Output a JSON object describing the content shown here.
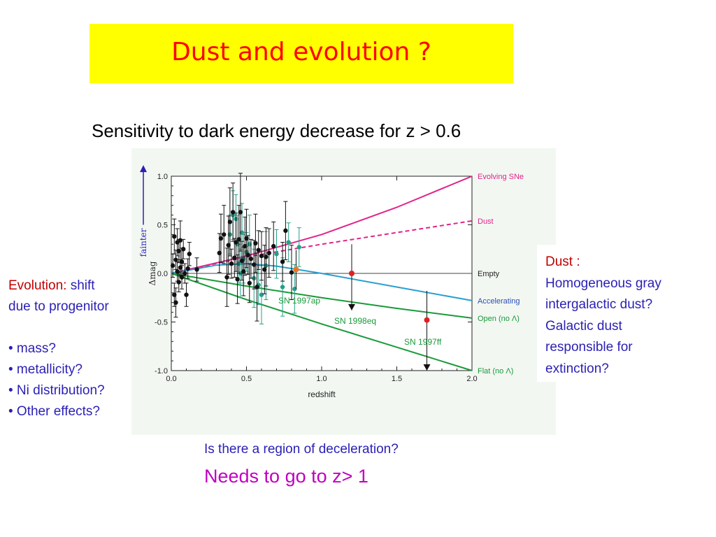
{
  "slide": {
    "title": "Dust and evolution ?",
    "subtitle": "Sensitivity to dark energy decrease for z > 0.6",
    "left_notes": {
      "heading_red": "Evolution:",
      "heading_rest": " shift",
      "line2": "due to progenitor",
      "bullets": [
        "• mass?",
        "• metallicity?",
        "• Ni distribution?",
        "• Other effects?"
      ]
    },
    "right_notes": {
      "heading": "Dust :",
      "lines": [
        "Homogeneous gray",
        "intergalactic dust?",
        "Galactic dust",
        "responsible for",
        "extinction?"
      ]
    },
    "question": "Is there a region of deceleration?",
    "needs": "Needs to go to  z> 1"
  },
  "chart_data": {
    "type": "scatter",
    "xlabel": "redshift",
    "ylabel": "Δmag",
    "arrow_label": "fainter",
    "xlim": [
      0.0,
      2.0
    ],
    "ylim": [
      -1.0,
      1.0
    ],
    "x_ticks": [
      "0.0",
      "0.5",
      "1.0",
      "1.5",
      "2.0"
    ],
    "y_ticks": [
      "1.0",
      "0.5",
      "0.0",
      "-0.5",
      "-1.0"
    ],
    "models": [
      {
        "name": "Evolving SNe",
        "color": "#e0248a",
        "dash": false,
        "points": [
          [
            0,
            0
          ],
          [
            0.5,
            0.18
          ],
          [
            1.0,
            0.4
          ],
          [
            1.5,
            0.68
          ],
          [
            2.0,
            1.0
          ]
        ]
      },
      {
        "name": "Dust",
        "color": "#e0248a",
        "dash": true,
        "points": [
          [
            0,
            0
          ],
          [
            0.5,
            0.17
          ],
          [
            1.0,
            0.3
          ],
          [
            1.5,
            0.42
          ],
          [
            2.0,
            0.54
          ]
        ]
      },
      {
        "name": "Empty",
        "color": "#444444",
        "dash": false,
        "points": [
          [
            0,
            0
          ],
          [
            2.0,
            0
          ]
        ]
      },
      {
        "name": "Accelerating",
        "color": "#2a9fd0",
        "dash": false,
        "points": [
          [
            0,
            0
          ],
          [
            0.3,
            0.085
          ],
          [
            0.5,
            0.1
          ],
          [
            0.7,
            0.075
          ],
          [
            1.0,
            0.0
          ],
          [
            1.5,
            -0.14
          ],
          [
            2.0,
            -0.28
          ]
        ]
      },
      {
        "name": "Open (no Λ)",
        "color": "#1a9a3a",
        "dash": false,
        "points": [
          [
            0,
            0
          ],
          [
            0.5,
            -0.13
          ],
          [
            1.0,
            -0.25
          ],
          [
            1.5,
            -0.36
          ],
          [
            2.0,
            -0.46
          ]
        ]
      },
      {
        "name": "Flat (no Λ)",
        "color": "#1a9a3a",
        "dash": false,
        "points": [
          [
            0,
            0
          ],
          [
            0.5,
            -0.27
          ],
          [
            1.0,
            -0.52
          ],
          [
            1.5,
            -0.76
          ],
          [
            2.0,
            -1.0
          ]
        ]
      }
    ],
    "black_points": [
      [
        0.01,
        0.08,
        0.12
      ],
      [
        0.02,
        0.38,
        0.18
      ],
      [
        0.02,
        -0.22,
        0.12
      ],
      [
        0.03,
        0.14,
        0.1
      ],
      [
        0.03,
        -0.3,
        0.15
      ],
      [
        0.04,
        0.02,
        0.1
      ],
      [
        0.04,
        0.32,
        0.14
      ],
      [
        0.05,
        0.23,
        0.12
      ],
      [
        0.05,
        -0.09,
        0.1
      ],
      [
        0.06,
        0.06,
        0.08
      ],
      [
        0.06,
        0.34,
        0.2
      ],
      [
        0.07,
        -0.04,
        0.12
      ],
      [
        0.07,
        0.12,
        0.14
      ],
      [
        0.08,
        0.25,
        0.1
      ],
      [
        0.09,
        0.0,
        0.1
      ],
      [
        0.1,
        -0.22,
        0.12
      ],
      [
        0.11,
        0.05,
        0.1
      ],
      [
        0.12,
        0.2,
        0.12
      ],
      [
        0.17,
        0.04,
        0.12
      ],
      [
        0.32,
        0.21,
        0.2
      ],
      [
        0.33,
        0.36,
        0.25
      ],
      [
        0.35,
        0.4,
        0.3
      ],
      [
        0.37,
        -0.04,
        0.3
      ],
      [
        0.38,
        0.29,
        0.3
      ],
      [
        0.39,
        0.53,
        0.35
      ],
      [
        0.4,
        0.1,
        0.15
      ],
      [
        0.41,
        0.63,
        0.3
      ],
      [
        0.42,
        0.16,
        0.2
      ],
      [
        0.43,
        0.32,
        0.3
      ],
      [
        0.44,
        -0.06,
        0.25
      ],
      [
        0.45,
        0.35,
        0.35
      ],
      [
        0.46,
        0.63,
        0.4
      ],
      [
        0.47,
        0.13,
        0.2
      ],
      [
        0.48,
        0.02,
        0.25
      ],
      [
        0.49,
        0.28,
        0.3
      ],
      [
        0.5,
        0.36,
        0.3
      ],
      [
        0.51,
        0.19,
        0.2
      ],
      [
        0.52,
        -0.1,
        0.2
      ],
      [
        0.53,
        0.15,
        0.2
      ],
      [
        0.55,
        0.09,
        0.25
      ],
      [
        0.56,
        0.31,
        0.3
      ],
      [
        0.57,
        -0.14,
        0.35
      ],
      [
        0.58,
        0.24,
        0.2
      ],
      [
        0.6,
        0.18,
        0.25
      ],
      [
        0.62,
        0.04,
        0.25
      ],
      [
        0.63,
        0.17,
        0.3
      ],
      [
        0.65,
        0.21,
        0.25
      ],
      [
        0.68,
        0.28,
        0.25
      ],
      [
        0.74,
        0.12,
        0.2
      ],
      [
        0.76,
        0.44,
        0.3
      ],
      [
        0.8,
        0.01,
        0.28
      ]
    ],
    "teal_points": [
      [
        0.39,
        0.4,
        0.2
      ],
      [
        0.41,
        0.6,
        0.25
      ],
      [
        0.43,
        0.56,
        0.25
      ],
      [
        0.44,
        0.3,
        0.3
      ],
      [
        0.45,
        0.1,
        0.2
      ],
      [
        0.46,
        0.0,
        0.25
      ],
      [
        0.47,
        0.42,
        0.3
      ],
      [
        0.48,
        0.15,
        0.25
      ],
      [
        0.5,
        0.22,
        0.2
      ],
      [
        0.52,
        0.3,
        0.3
      ],
      [
        0.55,
        -0.05,
        0.3
      ],
      [
        0.58,
        -0.12,
        0.2
      ],
      [
        0.6,
        -0.22,
        0.3
      ],
      [
        0.63,
        0.08,
        0.35
      ],
      [
        0.7,
        0.2,
        0.25
      ],
      [
        0.74,
        -0.14,
        0.3
      ],
      [
        0.78,
        0.32,
        0.2
      ],
      [
        0.82,
        -0.16,
        0.25
      ],
      [
        0.85,
        0.27,
        0.2
      ]
    ],
    "highlight_points": [
      {
        "x": 0.83,
        "y": 0.04,
        "err": 0.2,
        "color": "#f07020",
        "label": "SN 1997ap",
        "arrow_to": null
      },
      {
        "x": 1.2,
        "y": 0.0,
        "err": 0.3,
        "color": "#e02020",
        "label": "SN 1998eq",
        "arrow_to": -0.38
      },
      {
        "x": 1.7,
        "y": -0.48,
        "err": 0.3,
        "color": "#e02020",
        "label": "SN 1997ff",
        "arrow_to": -1.0
      }
    ]
  }
}
